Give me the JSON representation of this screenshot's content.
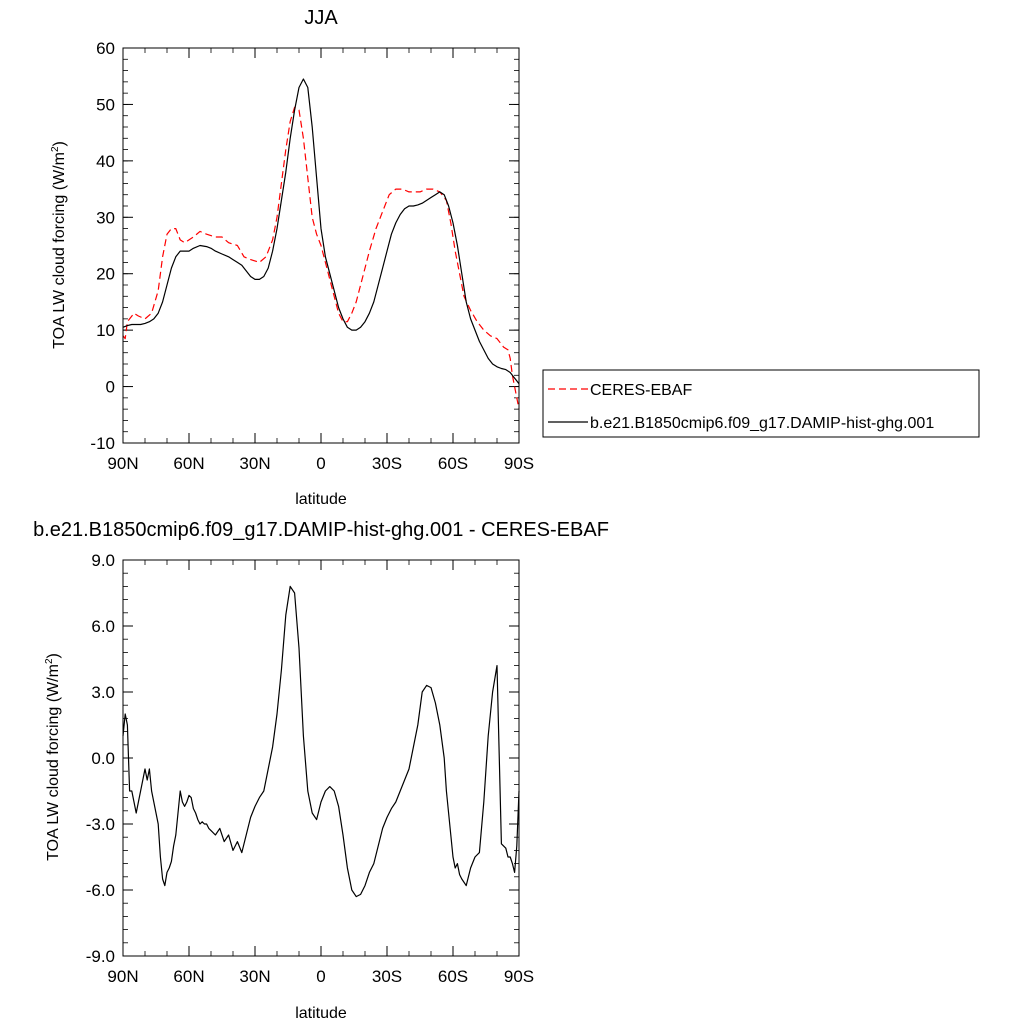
{
  "chart_data": [
    {
      "type": "line",
      "title": "JJA",
      "xlabel": "latitude",
      "ylabel_main": "TOA LW cloud forcing (W/m",
      "ylabel_sup": "2",
      "ylabel_tail": ")",
      "xlim": [
        90,
        -90
      ],
      "ylim": [
        -10,
        60
      ],
      "x_ticks": [
        {
          "value": 90,
          "label": "90N"
        },
        {
          "value": 60,
          "label": "60N"
        },
        {
          "value": 30,
          "label": "30N"
        },
        {
          "value": 0,
          "label": "0"
        },
        {
          "value": -30,
          "label": "30S"
        },
        {
          "value": -60,
          "label": "60S"
        },
        {
          "value": -90,
          "label": "90S"
        }
      ],
      "y_ticks": [
        {
          "value": 60,
          "label": "60"
        },
        {
          "value": 50,
          "label": "50"
        },
        {
          "value": 40,
          "label": "40"
        },
        {
          "value": 30,
          "label": "30"
        },
        {
          "value": 20,
          "label": "20"
        },
        {
          "value": 10,
          "label": "10"
        },
        {
          "value": 0,
          "label": "0"
        },
        {
          "value": -10,
          "label": "-10"
        }
      ],
      "legend": {
        "position": "right"
      },
      "series": [
        {
          "name": "CERES-EBAF",
          "color": "#ff0000",
          "dash": "dashed",
          "x": [
            90,
            89,
            88,
            87,
            85,
            83,
            80,
            77,
            74,
            72,
            70,
            68,
            66,
            64,
            62,
            60,
            58,
            55,
            52,
            48,
            45,
            42,
            38,
            35,
            32,
            28,
            25,
            22,
            20,
            18,
            16,
            14,
            12,
            10,
            8,
            6,
            4,
            2,
            0,
            -2,
            -4,
            -6,
            -8,
            -10,
            -12,
            -14,
            -16,
            -18,
            -20,
            -22,
            -25,
            -28,
            -31,
            -34,
            -37,
            -40,
            -42,
            -45,
            -48,
            -51,
            -54,
            -57,
            -59,
            -61,
            -63,
            -65,
            -68,
            -71,
            -74,
            -77,
            -80,
            -83,
            -85,
            -86,
            -87,
            -88,
            -89,
            -90
          ],
          "y": [
            9,
            8.5,
            11.5,
            12,
            13,
            12.5,
            12,
            13,
            17,
            23,
            27,
            28,
            28,
            26,
            25.5,
            26,
            26.5,
            27.5,
            27,
            26.5,
            26.5,
            25.5,
            25,
            23,
            22.5,
            22,
            23,
            26,
            30,
            36,
            42,
            47,
            49.5,
            49,
            44,
            37,
            30,
            27,
            25,
            22,
            19,
            16,
            13,
            11.5,
            11.5,
            13,
            15,
            18,
            21,
            24,
            28,
            31,
            34,
            35,
            35,
            34.5,
            34.5,
            34.5,
            35,
            35,
            34.5,
            33,
            29,
            24,
            20,
            16,
            13.5,
            11.5,
            10,
            9,
            8.5,
            7,
            6.5,
            5,
            2,
            0,
            -2,
            -4
          ]
        },
        {
          "name": "b.e21.B1850cmip6.f09_g17.DAMIP-hist-ghg.001",
          "color": "#000000",
          "dash": "solid",
          "x": [
            90,
            88,
            86,
            84,
            82,
            80,
            78,
            76,
            74,
            72,
            70,
            68,
            66,
            64,
            62,
            60,
            58,
            55,
            52,
            50,
            48,
            45,
            42,
            40,
            38,
            36,
            34,
            32,
            30,
            28,
            26,
            24,
            22,
            20,
            18,
            16,
            14,
            12,
            10,
            8,
            6,
            4,
            2,
            0,
            -2,
            -4,
            -6,
            -8,
            -10,
            -12,
            -14,
            -16,
            -18,
            -20,
            -22,
            -24,
            -26,
            -28,
            -30,
            -32,
            -34,
            -36,
            -38,
            -40,
            -42,
            -44,
            -46,
            -48,
            -50,
            -52,
            -54,
            -56,
            -58,
            -60,
            -62,
            -64,
            -66,
            -68,
            -70,
            -72,
            -74,
            -76,
            -78,
            -80,
            -82,
            -84,
            -86,
            -88,
            -89,
            -90
          ],
          "y": [
            10.5,
            10.8,
            11,
            11,
            11,
            11.2,
            11.5,
            12,
            13,
            15,
            18,
            21,
            23,
            24,
            24,
            24,
            24.5,
            25,
            24.8,
            24.5,
            24,
            23.5,
            23,
            22.5,
            22,
            21.5,
            20.5,
            19.5,
            19,
            19,
            19.5,
            21,
            24,
            28,
            33,
            38,
            44,
            49,
            53,
            54.5,
            53,
            46,
            37,
            28,
            23,
            20,
            17,
            14,
            12,
            10.5,
            10,
            10,
            10.5,
            11.5,
            13,
            15,
            18,
            21,
            24,
            27,
            29,
            30.5,
            31.5,
            32,
            32,
            32.2,
            32.5,
            33,
            33.5,
            34,
            34.5,
            34,
            32,
            29,
            25,
            20,
            15,
            12,
            10,
            8,
            6.5,
            5,
            4,
            3.5,
            3.2,
            3,
            2.5,
            1.5,
            1,
            0.5
          ]
        }
      ]
    },
    {
      "type": "line",
      "title": "b.e21.B1850cmip6.f09_g17.DAMIP-hist-ghg.001 - CERES-EBAF",
      "xlabel": "latitude",
      "ylabel_main": "TOA LW cloud forcing (W/m",
      "ylabel_sup": "2",
      "ylabel_tail": ")",
      "xlim": [
        90,
        -90
      ],
      "ylim": [
        -9,
        9
      ],
      "x_ticks": [
        {
          "value": 90,
          "label": "90N"
        },
        {
          "value": 60,
          "label": "60N"
        },
        {
          "value": 30,
          "label": "30N"
        },
        {
          "value": 0,
          "label": "0"
        },
        {
          "value": -30,
          "label": "30S"
        },
        {
          "value": -60,
          "label": "60S"
        },
        {
          "value": -90,
          "label": "90S"
        }
      ],
      "y_ticks": [
        {
          "value": 9,
          "label": "9.0"
        },
        {
          "value": 6,
          "label": "6.0"
        },
        {
          "value": 3,
          "label": "3.0"
        },
        {
          "value": 0,
          "label": "0.0"
        },
        {
          "value": -3,
          "label": "-3.0"
        },
        {
          "value": -6,
          "label": "-6.0"
        },
        {
          "value": -9,
          "label": "-9.0"
        }
      ],
      "series": [
        {
          "name": "",
          "color": "#000000",
          "dash": "solid",
          "x": [
            90,
            89,
            88,
            87,
            86,
            85,
            84,
            83,
            82,
            81,
            80,
            79,
            78,
            77,
            76,
            75,
            74,
            73,
            72,
            71,
            70,
            69,
            68,
            67,
            66,
            65,
            64,
            63,
            62,
            61,
            60,
            59,
            58,
            57,
            56,
            55,
            54,
            53,
            52,
            51,
            50,
            48,
            46,
            44,
            42,
            40,
            38,
            36,
            34,
            32,
            30,
            28,
            26,
            24,
            22,
            20,
            18,
            16,
            14,
            12,
            10,
            8,
            6,
            4,
            2,
            0,
            -2,
            -4,
            -6,
            -8,
            -10,
            -12,
            -14,
            -16,
            -18,
            -20,
            -22,
            -24,
            -26,
            -28,
            -30,
            -32,
            -34,
            -36,
            -38,
            -40,
            -42,
            -44,
            -46,
            -48,
            -50,
            -52,
            -54,
            -56,
            -57,
            -58,
            -59,
            -60,
            -61,
            -62,
            -63,
            -64,
            -66,
            -68,
            -70,
            -72,
            -74,
            -76,
            -78,
            -80,
            -82,
            -84,
            -85,
            -86,
            -87,
            -88,
            -89,
            -90
          ],
          "y": [
            1,
            2,
            1.5,
            -1.5,
            -1.5,
            -2,
            -2.5,
            -2,
            -1.5,
            -1,
            -0.5,
            -1,
            -0.5,
            -1.5,
            -2,
            -2.5,
            -3,
            -4.5,
            -5.5,
            -5.8,
            -5.2,
            -5,
            -4.7,
            -4,
            -3.5,
            -2.5,
            -1.5,
            -2,
            -2.2,
            -2,
            -1.7,
            -1.8,
            -2.3,
            -2.5,
            -2.8,
            -3,
            -2.9,
            -3,
            -3,
            -3.2,
            -3.3,
            -3.5,
            -3.2,
            -3.8,
            -3.5,
            -4.2,
            -3.8,
            -4.3,
            -3.5,
            -2.7,
            -2.2,
            -1.8,
            -1.5,
            -0.5,
            0.5,
            2,
            4,
            6.5,
            7.8,
            7.5,
            5,
            1,
            -1.5,
            -2.5,
            -2.8,
            -2,
            -1.5,
            -1.3,
            -1.5,
            -2.2,
            -3.5,
            -5,
            -6,
            -6.3,
            -6.2,
            -5.8,
            -5.2,
            -4.8,
            -4,
            -3.2,
            -2.7,
            -2.3,
            -2,
            -1.5,
            -1,
            -0.5,
            0.5,
            1.5,
            3,
            3.3,
            3.2,
            2.5,
            1.5,
            0,
            -1.5,
            -2.5,
            -3.5,
            -4.5,
            -5,
            -4.8,
            -5.3,
            -5.5,
            -5.8,
            -5,
            -4.5,
            -4.3,
            -2,
            1,
            3,
            4.2,
            -3.9,
            -4.1,
            -4.5,
            -4.5,
            -4.8,
            -5.2,
            -4,
            -1.5
          ]
        }
      ]
    }
  ]
}
